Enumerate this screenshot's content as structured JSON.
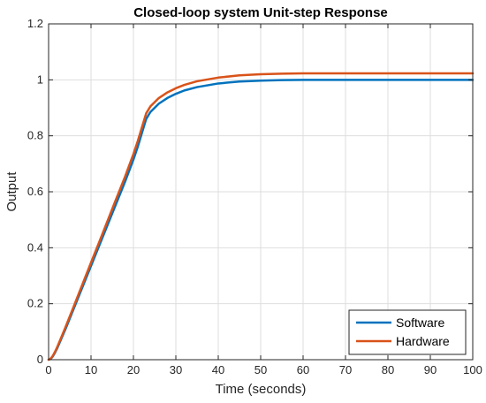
{
  "chart_data": {
    "type": "line",
    "title": "Closed-loop system Unit-step Response",
    "xlabel": "Time (seconds)",
    "ylabel": "Output",
    "xlim": [
      0,
      100
    ],
    "ylim": [
      0,
      1.2
    ],
    "xticks": [
      0,
      10,
      20,
      30,
      40,
      50,
      60,
      70,
      80,
      90,
      100
    ],
    "yticks": [
      0,
      0.2,
      0.4,
      0.6,
      0.8,
      1,
      1.2
    ],
    "xtick_labels": [
      "0",
      "10",
      "20",
      "30",
      "40",
      "50",
      "60",
      "70",
      "80",
      "90",
      "100"
    ],
    "ytick_labels": [
      "0",
      "0.2",
      "0.4",
      "0.6",
      "0.8",
      "1",
      "1.2"
    ],
    "grid": true,
    "legend_position": "bottom-right",
    "series": [
      {
        "name": "Software",
        "color": "#0072BD",
        "x": [
          0,
          0.5,
          1,
          1.5,
          2,
          3,
          4,
          6,
          8,
          10,
          12,
          14,
          16,
          18,
          20,
          21,
          22,
          23,
          24,
          26,
          28,
          30,
          32,
          35,
          40,
          45,
          50,
          55,
          60,
          65,
          70,
          80,
          90,
          100
        ],
        "y": [
          0,
          0.003,
          0.012,
          0.025,
          0.04,
          0.075,
          0.11,
          0.185,
          0.26,
          0.335,
          0.41,
          0.485,
          0.56,
          0.635,
          0.715,
          0.76,
          0.81,
          0.86,
          0.885,
          0.915,
          0.935,
          0.95,
          0.962,
          0.974,
          0.987,
          0.994,
          0.997,
          0.999,
          1.0,
          1.0,
          1.0,
          1.0,
          1.0,
          1.0
        ]
      },
      {
        "name": "Hardware",
        "color": "#D95319",
        "x": [
          0,
          0.5,
          1,
          1.5,
          2,
          3,
          4,
          6,
          8,
          10,
          12,
          14,
          16,
          18,
          20,
          21,
          22,
          23,
          24,
          26,
          28,
          30,
          32,
          35,
          40,
          45,
          50,
          55,
          60,
          65,
          70,
          80,
          90,
          100
        ],
        "y": [
          0,
          0.004,
          0.014,
          0.028,
          0.044,
          0.08,
          0.117,
          0.193,
          0.27,
          0.347,
          0.423,
          0.5,
          0.577,
          0.653,
          0.735,
          0.78,
          0.83,
          0.88,
          0.905,
          0.935,
          0.955,
          0.97,
          0.982,
          0.995,
          1.008,
          1.016,
          1.02,
          1.022,
          1.023,
          1.023,
          1.023,
          1.023,
          1.023,
          1.023
        ]
      }
    ]
  }
}
